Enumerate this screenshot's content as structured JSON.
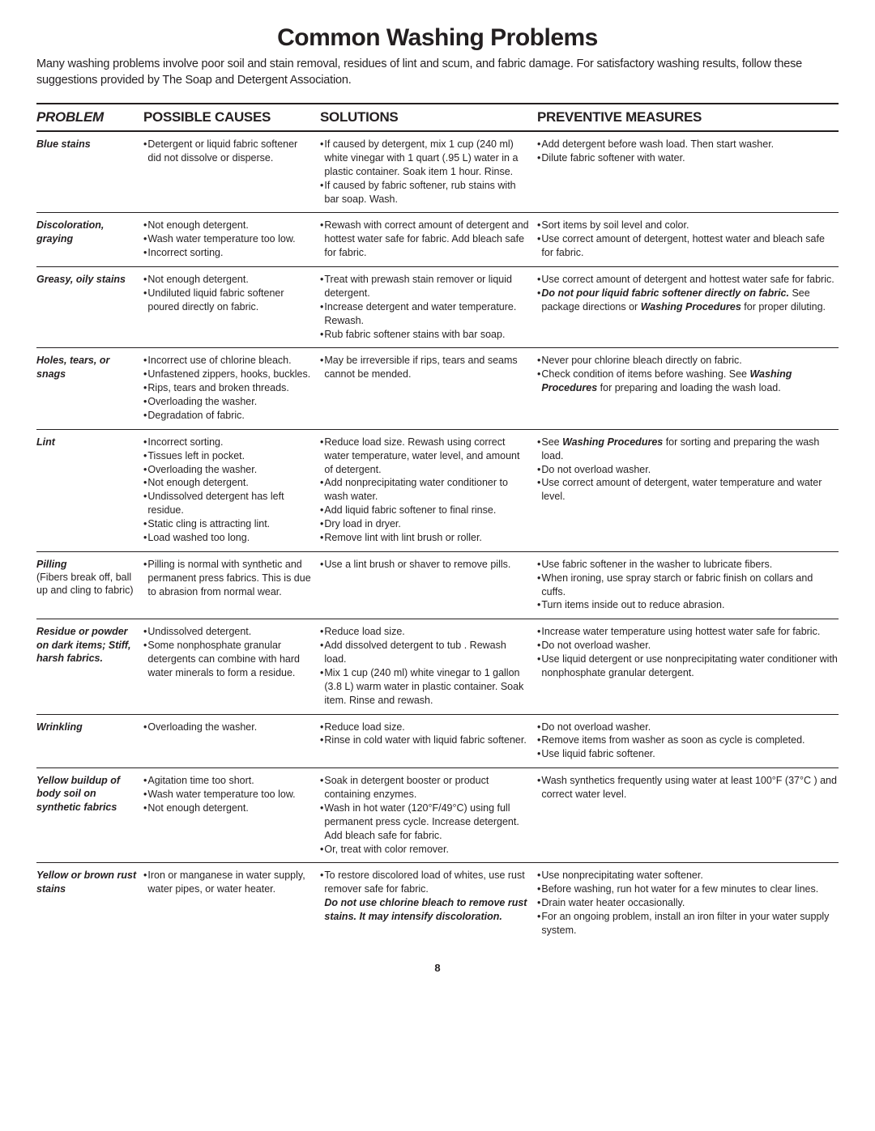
{
  "title": "Common Washing Problems",
  "intro": "Many washing problems involve poor soil and stain removal, residues of lint and scum, and fabric damage. For satisfactory washing results, follow these suggestions provided by The Soap and Detergent Association.",
  "headers": {
    "problem": "PROBLEM",
    "causes": "POSSIBLE CAUSES",
    "solutions": "SOLUTIONS",
    "preventive": "PREVENTIVE MEASURES"
  },
  "page": "8",
  "rows": {
    "r0": {
      "problem": "Blue stains",
      "causes_html": "<div class='bul'>Detergent or liquid fabric softener did not dissolve or disperse.</div>",
      "solutions_html": "<div class='bul'>If caused by detergent, mix 1 cup (240 ml) white vinegar with 1 quart (.95 L) water in a plastic container. Soak item 1 hour. Rinse.</div><div class='bul'>If caused by fabric softener, rub stains with bar soap. Wash.</div>",
      "prev_html": "<div class='bul'>Add detergent before wash load. Then start washer.</div><div class='bul'>Dilute fabric softener with water.</div>"
    },
    "r1": {
      "problem": "Discoloration, graying",
      "causes_html": "<div class='bul'>Not enough detergent.</div><div class='bul'>Wash water temperature too low.</div><div class='bul'>Incorrect sorting.</div>",
      "solutions_html": "<div class='bul'>Rewash with correct amount of detergent and hottest water safe for fabric. Add bleach safe for fabric.</div>",
      "prev_html": "<div class='bul'>Sort items by soil level and color.</div><div class='bul'>Use correct amount of detergent, hottest water and bleach safe for fabric.</div>"
    },
    "r2": {
      "problem": "Greasy, oily stains",
      "causes_html": "<div class='bul'>Not enough detergent.</div><div class='bul'>Undiluted liquid fabric softener poured directly on fabric.</div>",
      "solutions_html": "<div class='bul'>Treat with prewash stain remover or liquid detergent.</div><div class='bul'>Increase detergent and water temperature. Rewash.</div><div class='bul'>Rub fabric softener stains with bar soap.</div>",
      "prev_html": "<div class='bul'>Use correct  amount of detergent and hottest water safe for fabric.</div><div class='bul'><span><span class='bi'>Do not pour liquid fabric softener directly on fabric.</span> See package directions or <span class='bi'>Washing Procedures</span> for proper diluting.</span></div>"
    },
    "r3": {
      "problem": "Holes, tears, or snags",
      "causes_html": "<div class='bul'>Incorrect use of chlorine bleach.</div><div class='bul'>Unfastened zippers, hooks, buckles.</div><div class='bul'>Rips, tears and broken threads.</div><div class='bul'>Overloading the washer.</div><div class='bul'>Degradation of fabric.</div>",
      "solutions_html": "<div class='bul'>May be irreversible if rips, tears and seams cannot be mended.</div>",
      "prev_html": "<div class='bul'>Never pour chlorine bleach directly on fabric.</div><div class='bul'><span>Check condition of items before washing. See <span class='bi'>Washing Procedures</span> for preparing and loading the wash load.</span></div>"
    },
    "r4": {
      "problem": "Lint",
      "causes_html": "<div class='bul'>Incorrect sorting.</div><div class='bul'>Tissues left in pocket.</div><div class='bul'>Overloading the washer.</div><div class='bul'>Not  enough detergent.</div><div class='bul'>Undissolved detergent has left residue.</div><div class='bul'>Static cling is attracting lint.</div><div class='bul'>Load washed too long.</div>",
      "solutions_html": "<div class='bul'>Reduce load size. Rewash using correct water temperature, water level, and amount of detergent.</div><div class='bul'>Add  nonprecipitating water conditioner to wash water.</div><div class='bul'> Add liquid fabric softener to final rinse.</div><div class='bul'>Dry load in dryer.</div><div class='bul'>Remove lint with lint brush or roller.</div>",
      "prev_html": "<div class='bul'><span>See <span class='bi'>Washing Procedures</span> for sorting and preparing the wash load.</span></div><div class='bul'>Do not overload washer.</div><div class='bul'>Use correct amount of detergent, water temperature and water level.</div>"
    },
    "r5": {
      "problem_html": "<span class='bi'>Pilling</span><br><span class='sub'>(Fibers break off, ball up and cling to fabric)</span>",
      "causes_html": "<div class='bul'>Pilling is normal with synthetic and permanent press fabrics. This is due to abrasion from  normal wear.</div>",
      "solutions_html": "<div class='bul'>Use a lint brush or shaver to remove pills.</div>",
      "prev_html": "<div class='bul'>Use fabric softener in the washer to lubricate fibers.</div><div class='bul'>When ironing, use spray starch or fabric finish on collars  and cuffs.</div><div class='bul'>Turn items inside out to reduce abrasion.</div>"
    },
    "r6": {
      "problem": "Residue or powder on dark items; Stiff, harsh fabrics.",
      "causes_html": "<div class='bul'>Undissolved detergent.</div><div class='bul'>Some nonphosphate granular detergents can combine with hard water minerals to form a residue.</div>",
      "solutions_html": "<div class='bul'>Reduce load size.</div><div class='bul'>Add dissolved detergent to tub . Rewash load.</div><div class='bul'>Mix 1 cup (240 ml) white vinegar to 1 gallon (3.8 L) warm water in plastic container. Soak item. Rinse and rewash.</div>",
      "prev_html": "<div class='bul'>Increase water temperature using hottest water safe for fabric.</div><div class='bul'>Do not overload washer.</div><div class='bul'>Use liquid detergent or use nonprecipitating water conditioner with nonphosphate granular detergent.</div>"
    },
    "r7": {
      "problem": "Wrinkling",
      "causes_html": "<div class='bul'>Overloading the washer.</div>",
      "solutions_html": "<div class='bul'>Reduce load size.</div><div class='bul'>Rinse in cold water with liquid fabric softener.</div>",
      "prev_html": "<div class='bul'>Do not overload washer.</div><div class='bul'>Remove items from washer as soon as cycle is completed.</div><div class='bul'>Use liquid fabric softener.</div>"
    },
    "r8": {
      "problem": "Yellow buildup of body soil on synthetic fabrics",
      "causes_html": "<div class='bul'>Agitation time too short.</div><div class='bul'>Wash water temperature too low.</div><div class='bul'>Not enough detergent.</div>",
      "solutions_html": "<div class='bul'>Soak in detergent booster or product containing enzymes.</div><div class='bul'>Wash in hot water (120°F/49°C) using full permanent press cycle. Increase detergent.<br>Add bleach safe for fabric.</div><div class='bul'>Or, treat with color remover.</div>",
      "prev_html": "<div class='bul'>Wash synthetics frequently using water at least 100°F (37°C ) and correct water level.</div>"
    },
    "r9": {
      "problem": "Yellow or brown rust stains",
      "causes_html": "<div class='bul'>Iron or manganese in water supply, water pipes, or water heater.</div>",
      "solutions_html": "<div class='bul'><span>To restore discolored load of whites, use rust remover safe for fabric.<br><span class='bi'>Do not use chlorine bleach to remove rust stains. It may intensify discoloration.</span></span></div>",
      "prev_html": "<div class='bul'>Use nonprecipitating water softener.</div><div class='bul'>Before washing, run hot water for a few minutes to clear lines.</div><div class='bul'>Drain water heater occasionally.</div><div class='bul'>For an ongoing problem, install an iron filter in your water supply system.</div>"
    }
  }
}
